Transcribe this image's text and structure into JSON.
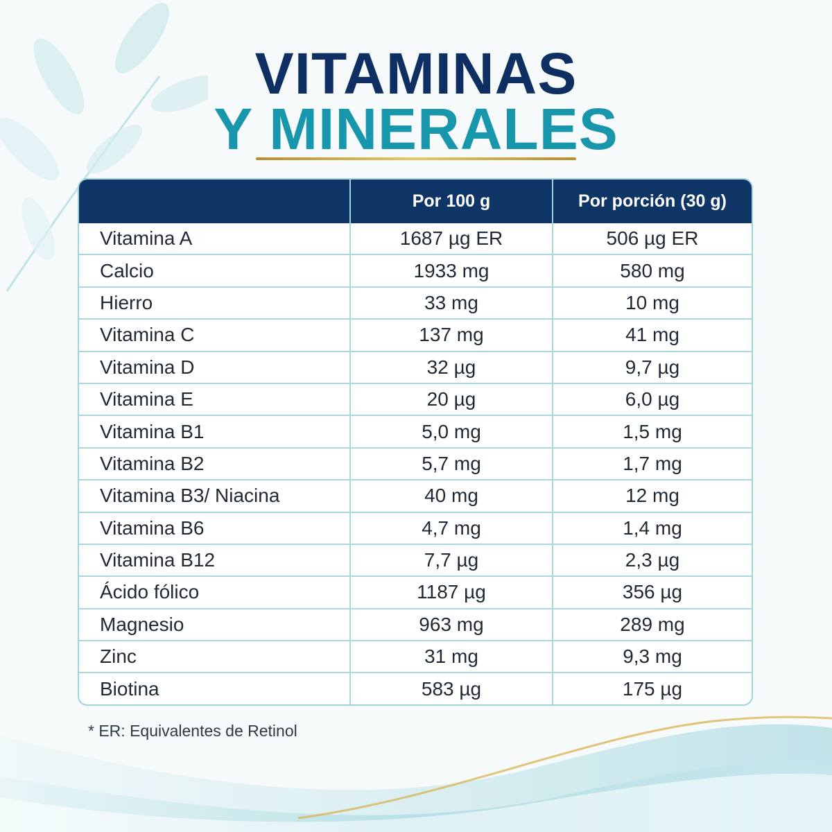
{
  "title": {
    "line1": "VITAMINAS",
    "line2": "Y MINERALES"
  },
  "table": {
    "headers": [
      "",
      "Por 100 g",
      "Por porción (30 g)"
    ],
    "rows": [
      {
        "name": "Vitamina A",
        "per100": "1687 µg ER",
        "perPortion": "506 µg ER"
      },
      {
        "name": "Calcio",
        "per100": "1933 mg",
        "perPortion": "580 mg"
      },
      {
        "name": "Hierro",
        "per100": "33 mg",
        "perPortion": "10 mg"
      },
      {
        "name": "Vitamina C",
        "per100": "137 mg",
        "perPortion": "41 mg"
      },
      {
        "name": "Vitamina D",
        "per100": "32 µg",
        "perPortion": "9,7 µg"
      },
      {
        "name": "Vitamina E",
        "per100": "20 µg",
        "perPortion": "6,0 µg"
      },
      {
        "name": "Vitamina B1",
        "per100": "5,0 mg",
        "perPortion": "1,5 mg"
      },
      {
        "name": "Vitamina B2",
        "per100": "5,7 mg",
        "perPortion": "1,7 mg"
      },
      {
        "name": "Vitamina B3/ Niacina",
        "per100": "40 mg",
        "perPortion": "12 mg"
      },
      {
        "name": "Vitamina B6",
        "per100": "4,7 mg",
        "perPortion": "1,4 mg"
      },
      {
        "name": "Vitamina B12",
        "per100": "7,7 µg",
        "perPortion": "2,3 µg"
      },
      {
        "name": "Ácido fólico",
        "per100": "1187 µg",
        "perPortion": "356 µg"
      },
      {
        "name": "Magnesio",
        "per100": "963 mg",
        "perPortion": "289 mg"
      },
      {
        "name": "Zinc",
        "per100": "31 mg",
        "perPortion": "9,3 mg"
      },
      {
        "name": "Biotina",
        "per100": "583 µg",
        "perPortion": "175 µg"
      }
    ]
  },
  "footnote": "* ER: Equivalentes de Retinol",
  "colors": {
    "title_dark": "#0f2f63",
    "title_teal": "#1796ac",
    "header_bg": "#0f3567",
    "grid": "#a9d8df",
    "gold": "#d4b04f"
  }
}
